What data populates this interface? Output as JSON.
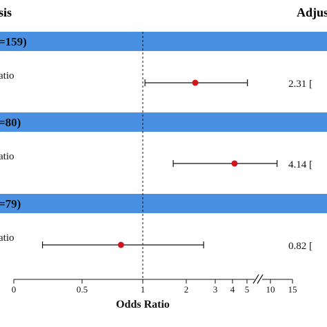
{
  "header": {
    "left": "sis",
    "right": "Adjus"
  },
  "colors": {
    "band": "#4a90e2",
    "point": "#d0161c",
    "line": "#111111"
  },
  "chart_data": {
    "type": "forest",
    "xlabel": "Odds Ratio",
    "reference_value": 1,
    "axis_ticks": [
      "0",
      "0.5",
      "1",
      "2",
      "3",
      "4",
      "5",
      "10",
      "15"
    ],
    "axis_break": "5-10",
    "groups": [
      {
        "label": "=159)",
        "row_label": "atio",
        "estimate": 2.31,
        "ci_low": 1.05,
        "ci_high": 5.1,
        "estimate_text": "2.31 ["
      },
      {
        "label": "=80)",
        "row_label": "atio",
        "estimate": 4.14,
        "ci_low": 1.7,
        "ci_high": 11.5,
        "estimate_text": "4.14 ["
      },
      {
        "label": "=79)",
        "row_label": "atio",
        "estimate": 0.82,
        "ci_low": 0.21,
        "ci_high": 2.6,
        "estimate_text": "0.82 ["
      }
    ]
  }
}
